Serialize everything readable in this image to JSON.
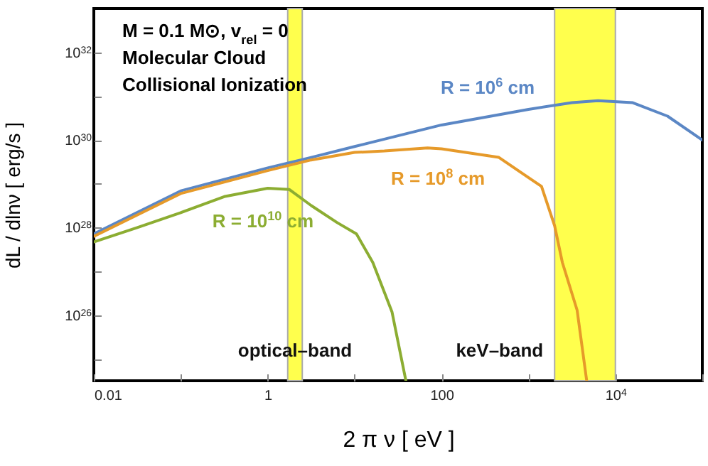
{
  "chart_data": {
    "type": "line",
    "xlabel": "2 π ν  [ eV ]",
    "ylabel": "dL / dlnν  [ erg/s ]",
    "log": "xy",
    "marker": "none",
    "line_style": "solid",
    "annotations": [
      "M = 0.1 M⊙, v$_{rel}$ = 0",
      "Molecular Cloud",
      "Collisional Ionization"
    ],
    "xlim": [
      0.01,
      100000
    ],
    "ylim": [
      3.2e+24,
      1e+33
    ],
    "xticks": [
      0.01,
      {
        "value": 0.1,
        "label": null
      },
      1,
      {
        "value": 10,
        "label": null
      },
      100,
      {
        "value": 1000,
        "label": null
      },
      {
        "value": 10000,
        "label": "10$^{4}$"
      },
      {
        "value": 100000,
        "label": null
      }
    ],
    "yticks": [
      {
        "value": 1e+25,
        "label": null
      },
      {
        "value": 1e+26,
        "label": "10$^{26}$"
      },
      {
        "value": 1e+27,
        "label": null
      },
      {
        "value": 1e+28,
        "label": "10$^{28}$"
      },
      {
        "value": 1e+29,
        "label": null
      },
      {
        "value": 1e+30,
        "label": "10$^{30}$"
      },
      {
        "value": 1e+31,
        "label": null
      },
      {
        "value": 1e+32,
        "label": "10$^{32}$"
      }
    ],
    "bands": [
      {
        "axis": "x",
        "from": 1.7,
        "to": 2.5,
        "label": "optical–band",
        "color": "#ffff4d"
      },
      {
        "axis": "x",
        "from": 2000,
        "to": 10000,
        "label": "keV–band",
        "color": "#ffff4d"
      }
    ],
    "series": [
      {
        "name": "R = 10$^{6}$ cm",
        "color": "#5b87c5",
        "x": [
          0.01,
          0.1,
          1,
          3.16,
          10,
          100,
          1000,
          3162,
          6310,
          15850,
          39810,
          100000
        ],
        "values": [
          7.2e+27,
          6.9e+28,
          2.3e+29,
          4e+29,
          7.1e+29,
          2.2e+30,
          5e+30,
          7.1e+30,
          7.9e+30,
          7.1e+30,
          3.5e+30,
          1e+30
        ]
      },
      {
        "name": "R = 10$^{8}$ cm",
        "color": "#e69a2a",
        "x": [
          0.01,
          0.1,
          1,
          3.16,
          10,
          22,
          69,
          100,
          457,
          1413,
          2000,
          2455,
          3630,
          4677
        ],
        "values": [
          6.3e+27,
          6e+28,
          2e+29,
          3.5e+29,
          5.2e+29,
          5.6e+29,
          6.6e+29,
          6.3e+29,
          4e+29,
          8.7e+28,
          1.1e+28,
          1.6e+27,
          1.3e+26,
          3.2e+24
        ]
      },
      {
        "name": "R = 10$^{10}$ cm",
        "color": "#8cad32",
        "x": [
          0.01,
          0.0316,
          0.1,
          0.316,
          1,
          1.78,
          3.16,
          6.3,
          10.5,
          16.2,
          26.9,
          38.9
        ],
        "values": [
          4.7e+27,
          1e+28,
          2.2e+28,
          5.1e+28,
          7.9e+28,
          7.4e+28,
          3.2e+28,
          1.3e+28,
          7.2e+27,
          1.6e+27,
          1.2e+26,
          3.2e+24
        ]
      }
    ]
  }
}
